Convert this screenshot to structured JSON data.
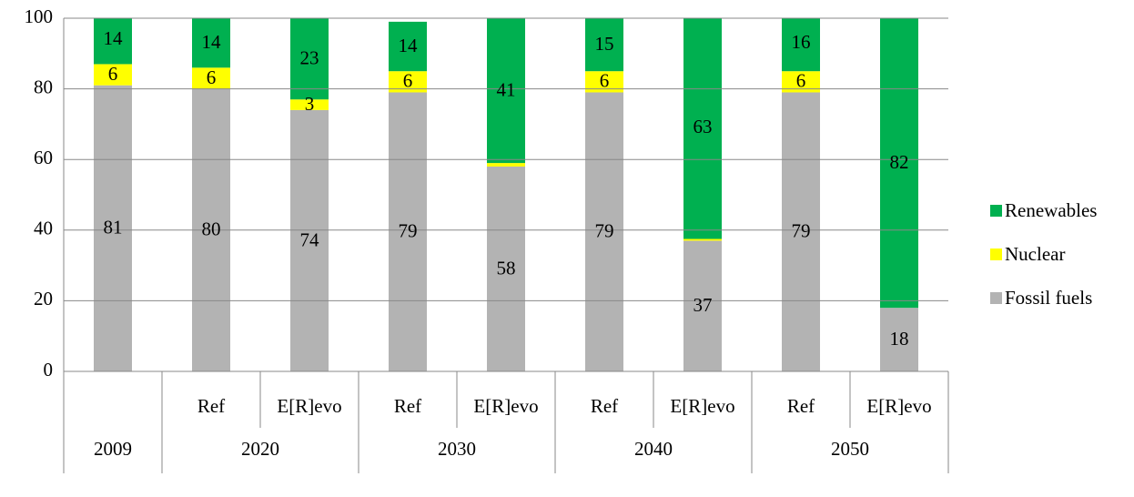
{
  "chart_data": {
    "type": "bar",
    "stacked": true,
    "categories": [
      null,
      "Ref",
      "E[R]evo",
      "Ref",
      "E[R]evo",
      "Ref",
      "E[R]evo",
      "Ref",
      "E[R]evo"
    ],
    "groups": [
      {
        "name": "2009",
        "count": 1
      },
      {
        "name": "2020",
        "count": 2
      },
      {
        "name": "2030",
        "count": 2
      },
      {
        "name": "2040",
        "count": 2
      },
      {
        "name": "2050",
        "count": 2
      }
    ],
    "series": [
      {
        "name": "Fossil fuels",
        "color": "#b3b3b3",
        "values": [
          81,
          80,
          74,
          79,
          58,
          79,
          37,
          79,
          18
        ]
      },
      {
        "name": "Nuclear",
        "color": "#ffff00",
        "values": [
          6,
          6,
          3,
          6,
          1,
          6,
          0.5,
          6,
          0
        ],
        "value_labels": [
          "6",
          "6",
          "3",
          "6",
          null,
          "6",
          null,
          "6",
          null
        ]
      },
      {
        "name": "Renewables",
        "color": "#00b050",
        "values": [
          14,
          14,
          23,
          14,
          41,
          15,
          63,
          16,
          82
        ]
      }
    ],
    "ylim": [
      0,
      100
    ],
    "yticks": [
      0,
      20,
      40,
      60,
      80,
      100
    ],
    "grid": true,
    "legend": "right"
  }
}
